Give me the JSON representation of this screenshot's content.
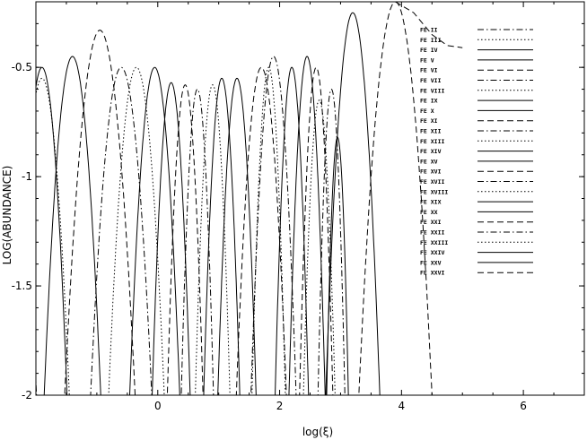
{
  "chart_data": {
    "type": "line",
    "title": "",
    "xlabel": "log(ξ)",
    "ylabel": "LOG(ABUNDANCE)",
    "xlim": [
      -2,
      7
    ],
    "ylim": [
      -2,
      -0.2
    ],
    "x_ticks": [
      0,
      2,
      4,
      6
    ],
    "x_tick_labels": [
      "0",
      "2",
      "4",
      "6"
    ],
    "y_ticks": [
      -0.5,
      -1,
      -1.5,
      -2
    ],
    "y_tick_labels": [
      "-0.5",
      "-1",
      "-1.5",
      "-2"
    ],
    "grid": false,
    "legend_position": "top-right",
    "series": [
      {
        "name": "FE II",
        "dash": "dashdot",
        "peak_x": -2.5,
        "peak_y": -0.45,
        "width": 0.55
      },
      {
        "name": "FE III",
        "dash": "dotted",
        "peak_x": -1.9,
        "peak_y": -0.55,
        "width": 0.5
      },
      {
        "name": "FE IV",
        "dash": "solid",
        "peak_x": -1.9,
        "peak_y": -0.5,
        "width": 0.45
      },
      {
        "name": "FE V",
        "dash": "solid",
        "peak_x": -1.4,
        "peak_y": -0.45,
        "width": 0.5
      },
      {
        "name": "FE VI",
        "dash": "dashed",
        "peak_x": -0.95,
        "peak_y": -0.33,
        "width": 0.6
      },
      {
        "name": "FE VII",
        "dash": "dashdot",
        "peak_x": -0.6,
        "peak_y": -0.5,
        "width": 0.55
      },
      {
        "name": "FE VIII",
        "dash": "dotted",
        "peak_x": -0.35,
        "peak_y": -0.5,
        "width": 0.5
      },
      {
        "name": "FE IX",
        "dash": "solid",
        "peak_x": -0.05,
        "peak_y": -0.5,
        "width": 0.45
      },
      {
        "name": "FE X",
        "dash": "solid",
        "peak_x": 0.22,
        "peak_y": -0.57,
        "width": 0.35
      },
      {
        "name": "FE XI",
        "dash": "dashed",
        "peak_x": 0.45,
        "peak_y": -0.58,
        "width": 0.33
      },
      {
        "name": "FE XII",
        "dash": "dashdot",
        "peak_x": 0.65,
        "peak_y": -0.6,
        "width": 0.3
      },
      {
        "name": "FE XIII",
        "dash": "dotted",
        "peak_x": 0.9,
        "peak_y": -0.58,
        "width": 0.32
      },
      {
        "name": "FE XIV",
        "dash": "solid",
        "peak_x": 1.05,
        "peak_y": -0.55,
        "width": 0.33
      },
      {
        "name": "FE XV",
        "dash": "solid",
        "peak_x": 1.3,
        "peak_y": -0.55,
        "width": 0.35
      },
      {
        "name": "FE XVI",
        "dash": "dashed",
        "peak_x": 1.7,
        "peak_y": -0.5,
        "width": 0.45
      },
      {
        "name": "FE XVII",
        "dash": "dashdot",
        "peak_x": 1.9,
        "peak_y": -0.45,
        "width": 0.4
      },
      {
        "name": "FE XVIII",
        "dash": "dotted",
        "peak_x": 1.82,
        "peak_y": -0.5,
        "width": 0.3
      },
      {
        "name": "FE XIX",
        "dash": "solid",
        "peak_x": 2.2,
        "peak_y": -0.5,
        "width": 0.3
      },
      {
        "name": "FE XX",
        "dash": "solid",
        "peak_x": 2.45,
        "peak_y": -0.45,
        "width": 0.32
      },
      {
        "name": "FE XXI",
        "dash": "dashed",
        "peak_x": 2.6,
        "peak_y": -0.5,
        "width": 0.3
      },
      {
        "name": "FE XXII",
        "dash": "dashdot",
        "peak_x": 2.85,
        "peak_y": -0.6,
        "width": 0.25
      },
      {
        "name": "FE XXIII",
        "dash": "dotted",
        "peak_x": 2.65,
        "peak_y": -0.65,
        "width": 0.3
      },
      {
        "name": "FE XXIV",
        "dash": "solid",
        "peak_x": 2.95,
        "peak_y": -0.82,
        "width": 0.22
      },
      {
        "name": "FE XXV",
        "dash": "solid",
        "peak_x": 3.2,
        "peak_y": -0.25,
        "width": 0.45
      },
      {
        "name": "FE XXVI",
        "dash": "dashed",
        "peak_x": 3.9,
        "peak_y": -0.2,
        "width": 0.6
      }
    ],
    "tail": {
      "name": "FE XXVI",
      "points": [
        [
          3.9,
          -0.2
        ],
        [
          4.2,
          -0.25
        ],
        [
          4.5,
          -0.35
        ],
        [
          4.75,
          -0.4
        ],
        [
          5.0,
          -0.41
        ]
      ]
    }
  }
}
